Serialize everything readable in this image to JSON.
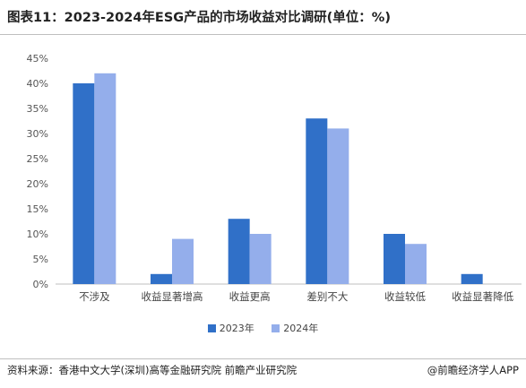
{
  "title": "图表11：2023-2024年ESG产品的市场收益对比调研(单位：%)",
  "source": "资料来源：香港中文大学(深圳)高等金融研究院 前瞻产业研究院",
  "credit": "@前瞻经济学人APP",
  "colors": {
    "series_2023": "#3070C8",
    "series_2024": "#94AEEB"
  },
  "chart_data": {
    "type": "bar",
    "categories": [
      "不涉及",
      "收益显著增高",
      "收益更高",
      "差别不大",
      "收益较低",
      "收益显著降低"
    ],
    "series": [
      {
        "name": "2023年",
        "values": [
          40,
          2,
          13,
          33,
          10,
          2
        ]
      },
      {
        "name": "2024年",
        "values": [
          42,
          9,
          10,
          31,
          8,
          0
        ]
      }
    ],
    "yticks": [
      "0%",
      "5%",
      "10%",
      "15%",
      "20%",
      "25%",
      "30%",
      "35%",
      "40%",
      "45%"
    ],
    "ylim": [
      0,
      45
    ],
    "grid": false,
    "legend": "bottom"
  }
}
